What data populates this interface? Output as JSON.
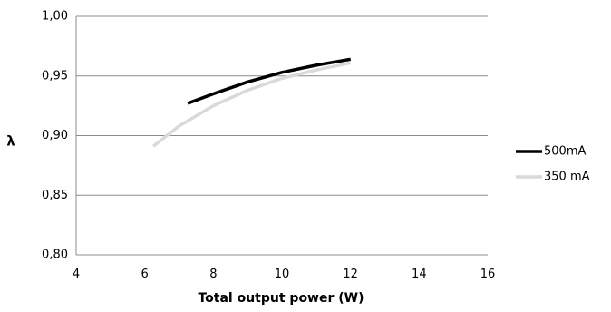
{
  "chart_data": {
    "type": "line",
    "title": "",
    "xlabel": "Total output power (W)",
    "ylabel": "λ",
    "xlim": [
      4,
      16
    ],
    "ylim": [
      0.8,
      1.0
    ],
    "x_ticks": [
      4,
      6,
      8,
      10,
      12,
      14,
      16
    ],
    "y_ticks": [
      0.8,
      0.85,
      0.9,
      0.95,
      1.0
    ],
    "x_tick_labels": [
      "4",
      "6",
      "8",
      "10",
      "12",
      "14",
      "16"
    ],
    "y_tick_labels": [
      "0,80",
      "0,85",
      "0,90",
      "0,95",
      "1,00"
    ],
    "grid": "horizontal",
    "legend_position": "right",
    "series": [
      {
        "name": "500mA",
        "color": "#000000",
        "x": [
          7.25,
          8.0,
          9.0,
          10.0,
          11.0,
          12.0
        ],
        "y": [
          0.927,
          0.935,
          0.945,
          0.953,
          0.959,
          0.964
        ]
      },
      {
        "name": "350 mA",
        "color": "#d9d9d9",
        "x": [
          6.25,
          7.0,
          8.0,
          9.0,
          10.0,
          11.0,
          12.0
        ],
        "y": [
          0.891,
          0.908,
          0.925,
          0.938,
          0.948,
          0.955,
          0.961
        ]
      }
    ]
  }
}
